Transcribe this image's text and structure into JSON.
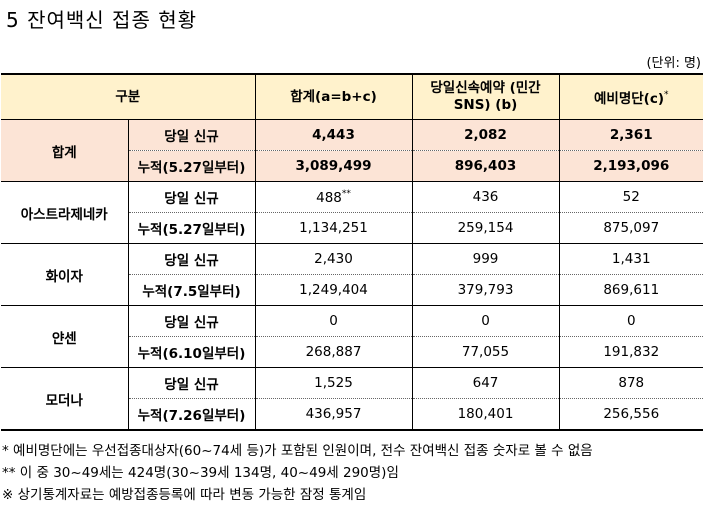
{
  "title": "5  잔여백신 접종 현황",
  "unit": "(단위: 명)",
  "headers": {
    "category": "구분",
    "total": "합계(a=b+c)",
    "sns_line1": "당일신속예약 (민간",
    "sns_line2": "SNS) (b)",
    "reserve": "예비명단(c)",
    "reserve_mark": "*"
  },
  "groups": [
    {
      "name": "합계",
      "rows": [
        {
          "label": "당일 신규",
          "total": "4,443",
          "total_mark": "",
          "sns": "2,082",
          "reserve": "2,361"
        },
        {
          "label": "누적(5.27일부터)",
          "total": "3,089,499",
          "total_mark": "",
          "sns": "896,403",
          "reserve": "2,193,096"
        }
      ]
    },
    {
      "name": "아스트라제네카",
      "rows": [
        {
          "label": "당일 신규",
          "total": "488",
          "total_mark": "**",
          "sns": "436",
          "reserve": "52"
        },
        {
          "label": "누적(5.27일부터)",
          "total": "1,134,251",
          "total_mark": "",
          "sns": "259,154",
          "reserve": "875,097"
        }
      ]
    },
    {
      "name": "화이자",
      "rows": [
        {
          "label": "당일 신규",
          "total": "2,430",
          "total_mark": "",
          "sns": "999",
          "reserve": "1,431"
        },
        {
          "label": "누적(7.5일부터)",
          "total": "1,249,404",
          "total_mark": "",
          "sns": "379,793",
          "reserve": "869,611"
        }
      ]
    },
    {
      "name": "얀센",
      "rows": [
        {
          "label": "당일 신규",
          "total": "0",
          "total_mark": "",
          "sns": "0",
          "reserve": "0"
        },
        {
          "label": "누적(6.10일부터)",
          "total": "268,887",
          "total_mark": "",
          "sns": "77,055",
          "reserve": "191,832"
        }
      ]
    },
    {
      "name": "모더나",
      "rows": [
        {
          "label": "당일 신규",
          "total": "1,525",
          "total_mark": "",
          "sns": "647",
          "reserve": "878"
        },
        {
          "label": "누적(7.26일부터)",
          "total": "436,957",
          "total_mark": "",
          "sns": "180,401",
          "reserve": "256,556"
        }
      ]
    }
  ],
  "notes": [
    " * 예비명단에는 우선접종대상자(60~74세 등)가 포함된 인원이며, 전수 잔여백신 접종 숫자로 볼 수 없음",
    "** 이 중 30~49세는 424명(30~39세 134명, 40~49세 290명)임",
    "※ 상기통계자료는 예방접종등록에 따라 변동 가능한 잠정 통계임"
  ],
  "colors": {
    "header_bg": "#fff2cc",
    "total_bg": "#fce4d6"
  }
}
